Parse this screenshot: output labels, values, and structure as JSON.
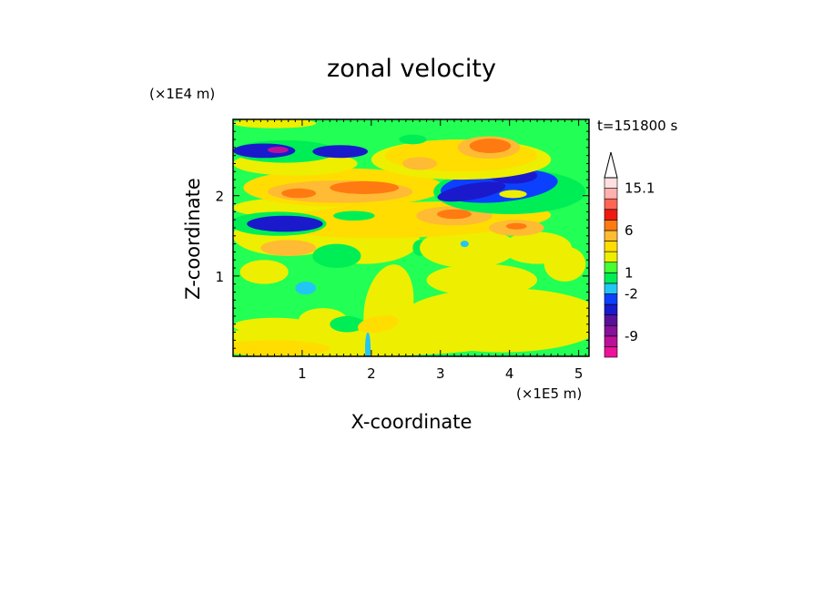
{
  "chart_data": {
    "type": "heatmap",
    "title": "zonal velocity",
    "xlabel": "X-coordinate",
    "ylabel": "Z-coordinate",
    "x_unit": "(×1E5 m)",
    "y_unit": "(×1E4 m)",
    "time_label": "t=151800 s",
    "xlim": [
      0,
      5.15
    ],
    "ylim": [
      0,
      2.95
    ],
    "x_ticks": [
      1,
      2,
      3,
      4,
      5
    ],
    "y_ticks": [
      1,
      2
    ],
    "colorbar": {
      "tick_labels": [
        "15.1",
        "6",
        "1",
        "-2",
        "-9"
      ],
      "levels": [
        -12,
        -10.5,
        -9,
        -7,
        -5,
        -3,
        -2,
        -1,
        1,
        2,
        3,
        4.5,
        6,
        8,
        10,
        12.5,
        15.1
      ],
      "colors": [
        "#ee1199",
        "#bb1199",
        "#881199",
        "#5a1199",
        "#1a1acc",
        "#0b40ff",
        "#22c6f4",
        "#00ee55",
        "#44ff33",
        "#eeee00",
        "#ffdd00",
        "#ffbb33",
        "#ff7a11",
        "#ee1a11",
        "#ff6655",
        "#ffb0b0",
        "#ffe0e0"
      ],
      "overflow_top_color": "#ffffff"
    },
    "grid": false,
    "background_color": "#22ff55",
    "regions": [
      {
        "value": 2,
        "cx": 3.9,
        "cy": 0.45,
        "rx": 1.5,
        "ry": 0.4,
        "rot": 0
      },
      {
        "value": 2,
        "cx": 1.8,
        "cy": 0.2,
        "rx": 2.2,
        "ry": 0.2,
        "rot": 0
      },
      {
        "value": 3,
        "cx": 0.6,
        "cy": 0.1,
        "rx": 0.8,
        "ry": 0.1,
        "rot": 0
      },
      {
        "value": 2,
        "cx": 0.6,
        "cy": 0.38,
        "rx": 0.6,
        "ry": 0.1,
        "rot": 0
      },
      {
        "value": 2,
        "cx": 2.25,
        "cy": 0.6,
        "rx": 0.35,
        "ry": 0.55,
        "rot": 10
      },
      {
        "value": 2,
        "cx": 3.6,
        "cy": 0.95,
        "rx": 0.8,
        "ry": 0.2,
        "rot": 0
      },
      {
        "value": 2,
        "cx": 4.8,
        "cy": 1.15,
        "rx": 0.3,
        "ry": 0.22,
        "rot": 0
      },
      {
        "value": 2,
        "cx": 0.45,
        "cy": 1.05,
        "rx": 0.35,
        "ry": 0.15,
        "rot": 0
      },
      {
        "value": 2,
        "cx": 1.3,
        "cy": 0.45,
        "rx": 0.35,
        "ry": 0.15,
        "rot": 0
      },
      {
        "value": -1,
        "cx": 1.65,
        "cy": 0.4,
        "rx": 0.25,
        "ry": 0.1,
        "rot": 0
      },
      {
        "value": -2,
        "cx": 1.05,
        "cy": 0.85,
        "rx": 0.15,
        "ry": 0.08,
        "rot": 0
      },
      {
        "value": -2,
        "cx": 1.95,
        "cy": 0.1,
        "rx": 0.04,
        "ry": 0.2,
        "rot": 0
      },
      {
        "value": 3,
        "cx": 2.1,
        "cy": 0.4,
        "rx": 0.3,
        "ry": 0.1,
        "rot": -10
      },
      {
        "value": 2,
        "cx": 0.8,
        "cy": 1.5,
        "rx": 0.8,
        "ry": 0.25,
        "rot": 0
      },
      {
        "value": 2,
        "cx": 1.9,
        "cy": 1.45,
        "rx": 0.8,
        "ry": 0.3,
        "rot": 0
      },
      {
        "value": 4.5,
        "cx": 0.8,
        "cy": 1.35,
        "rx": 0.4,
        "ry": 0.1,
        "rot": 0
      },
      {
        "value": -1,
        "cx": 1.5,
        "cy": 1.25,
        "rx": 0.35,
        "ry": 0.15,
        "rot": 0
      },
      {
        "value": -1,
        "cx": 2.7,
        "cy": 1.35,
        "rx": 0.1,
        "ry": 0.1,
        "rot": 0
      },
      {
        "value": 2,
        "cx": 3.4,
        "cy": 1.35,
        "rx": 0.7,
        "ry": 0.25,
        "rot": 0
      },
      {
        "value": -2,
        "cx": 3.35,
        "cy": 1.4,
        "rx": 0.06,
        "ry": 0.04,
        "rot": 0
      },
      {
        "value": 2,
        "cx": 4.4,
        "cy": 1.35,
        "rx": 0.5,
        "ry": 0.2,
        "rot": 0
      },
      {
        "value": 2,
        "cx": 0.8,
        "cy": 1.85,
        "rx": 0.8,
        "ry": 0.12,
        "rot": 0
      },
      {
        "value": 3,
        "cx": 2.6,
        "cy": 1.7,
        "rx": 2.0,
        "ry": 0.22,
        "rot": -2
      },
      {
        "value": 4.5,
        "cx": 3.2,
        "cy": 1.75,
        "rx": 0.55,
        "ry": 0.12,
        "rot": 0
      },
      {
        "value": 6,
        "cx": 3.2,
        "cy": 1.77,
        "rx": 0.25,
        "ry": 0.06,
        "rot": 0
      },
      {
        "value": 4.5,
        "cx": 4.1,
        "cy": 1.6,
        "rx": 0.4,
        "ry": 0.1,
        "rot": 0
      },
      {
        "value": 6,
        "cx": 4.1,
        "cy": 1.62,
        "rx": 0.15,
        "ry": 0.04,
        "rot": 0
      },
      {
        "value": -1,
        "cx": 0.65,
        "cy": 1.65,
        "rx": 0.7,
        "ry": 0.15,
        "rot": 0
      },
      {
        "value": -5,
        "cx": 0.75,
        "cy": 1.65,
        "rx": 0.55,
        "ry": 0.1,
        "rot": 0
      },
      {
        "value": -1,
        "cx": 1.75,
        "cy": 1.75,
        "rx": 0.3,
        "ry": 0.06,
        "rot": 0
      },
      {
        "value": 3,
        "cx": 1.6,
        "cy": 2.1,
        "rx": 1.45,
        "ry": 0.24,
        "rot": 0
      },
      {
        "value": 4.5,
        "cx": 1.55,
        "cy": 2.05,
        "rx": 1.05,
        "ry": 0.14,
        "rot": 0
      },
      {
        "value": 6,
        "cx": 1.9,
        "cy": 2.1,
        "rx": 0.5,
        "ry": 0.08,
        "rot": 0
      },
      {
        "value": 6,
        "cx": 0.95,
        "cy": 2.03,
        "rx": 0.25,
        "ry": 0.06,
        "rot": 0
      },
      {
        "value": -1,
        "cx": 4.0,
        "cy": 2.05,
        "rx": 1.1,
        "ry": 0.28,
        "rot": 0
      },
      {
        "value": -3,
        "cx": 3.85,
        "cy": 2.12,
        "rx": 0.85,
        "ry": 0.2,
        "rot": -5
      },
      {
        "value": -5,
        "cx": 3.45,
        "cy": 2.05,
        "rx": 0.5,
        "ry": 0.1,
        "rot": -10
      },
      {
        "value": -5,
        "cx": 4.05,
        "cy": 2.25,
        "rx": 0.35,
        "ry": 0.1,
        "rot": 0
      },
      {
        "value": 2,
        "cx": 4.05,
        "cy": 2.02,
        "rx": 0.2,
        "ry": 0.05,
        "rot": 0
      },
      {
        "value": 2,
        "cx": 0.9,
        "cy": 2.4,
        "rx": 0.9,
        "ry": 0.15,
        "rot": 0
      },
      {
        "value": -1,
        "cx": 0.75,
        "cy": 2.55,
        "rx": 0.75,
        "ry": 0.14,
        "rot": 0
      },
      {
        "value": -5,
        "cx": 0.45,
        "cy": 2.56,
        "rx": 0.45,
        "ry": 0.09,
        "rot": 0
      },
      {
        "value": -5,
        "cx": 1.55,
        "cy": 2.55,
        "rx": 0.4,
        "ry": 0.08,
        "rot": 0
      },
      {
        "value": -10.5,
        "cx": 0.65,
        "cy": 2.57,
        "rx": 0.15,
        "ry": 0.04,
        "rot": 0
      },
      {
        "value": 2,
        "cx": 3.3,
        "cy": 2.45,
        "rx": 1.3,
        "ry": 0.25,
        "rot": 0
      },
      {
        "value": 3,
        "cx": 3.3,
        "cy": 2.5,
        "rx": 1.1,
        "ry": 0.2,
        "rot": 0
      },
      {
        "value": 4.5,
        "cx": 3.7,
        "cy": 2.6,
        "rx": 0.45,
        "ry": 0.14,
        "rot": 0
      },
      {
        "value": 6,
        "cx": 3.72,
        "cy": 2.62,
        "rx": 0.3,
        "ry": 0.09,
        "rot": 0
      },
      {
        "value": 4.5,
        "cx": 2.7,
        "cy": 2.4,
        "rx": 0.25,
        "ry": 0.08,
        "rot": 0
      },
      {
        "value": -1,
        "cx": 2.6,
        "cy": 2.7,
        "rx": 0.2,
        "ry": 0.06,
        "rot": 0
      },
      {
        "value": 2,
        "cx": 0.6,
        "cy": 2.9,
        "rx": 0.6,
        "ry": 0.06,
        "rot": 0
      }
    ]
  }
}
